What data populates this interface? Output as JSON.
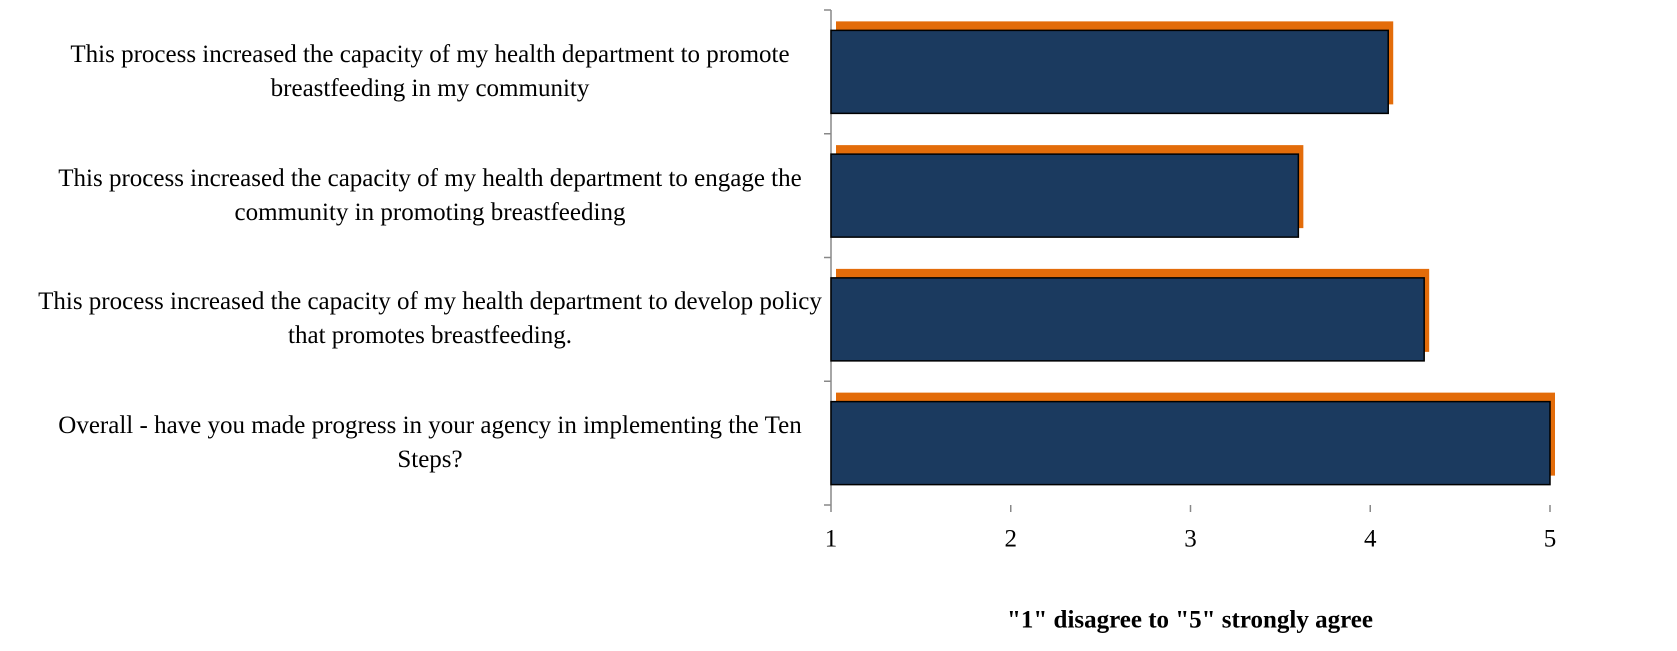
{
  "chart_data": {
    "type": "barh",
    "categories": [
      "This process increased the capacity of my health department to promote breastfeeding in my community",
      "This process increased the capacity of my health department to engage the community in promoting breastfeeding",
      "This process increased the capacity of my health department to develop policy that promotes breastfeeding.",
      "Overall - have you made progress in your agency in implementing the Ten Steps?"
    ],
    "values": [
      4.1,
      3.6,
      4.3,
      5.0
    ],
    "color": "#1b3a5f",
    "shadow_color": "#e36c0a",
    "xlabel": "\"1\" disagree to \"5\" strongly agree",
    "xlim": [
      1,
      5
    ],
    "xticks": [
      1,
      2,
      3,
      4,
      5
    ]
  }
}
